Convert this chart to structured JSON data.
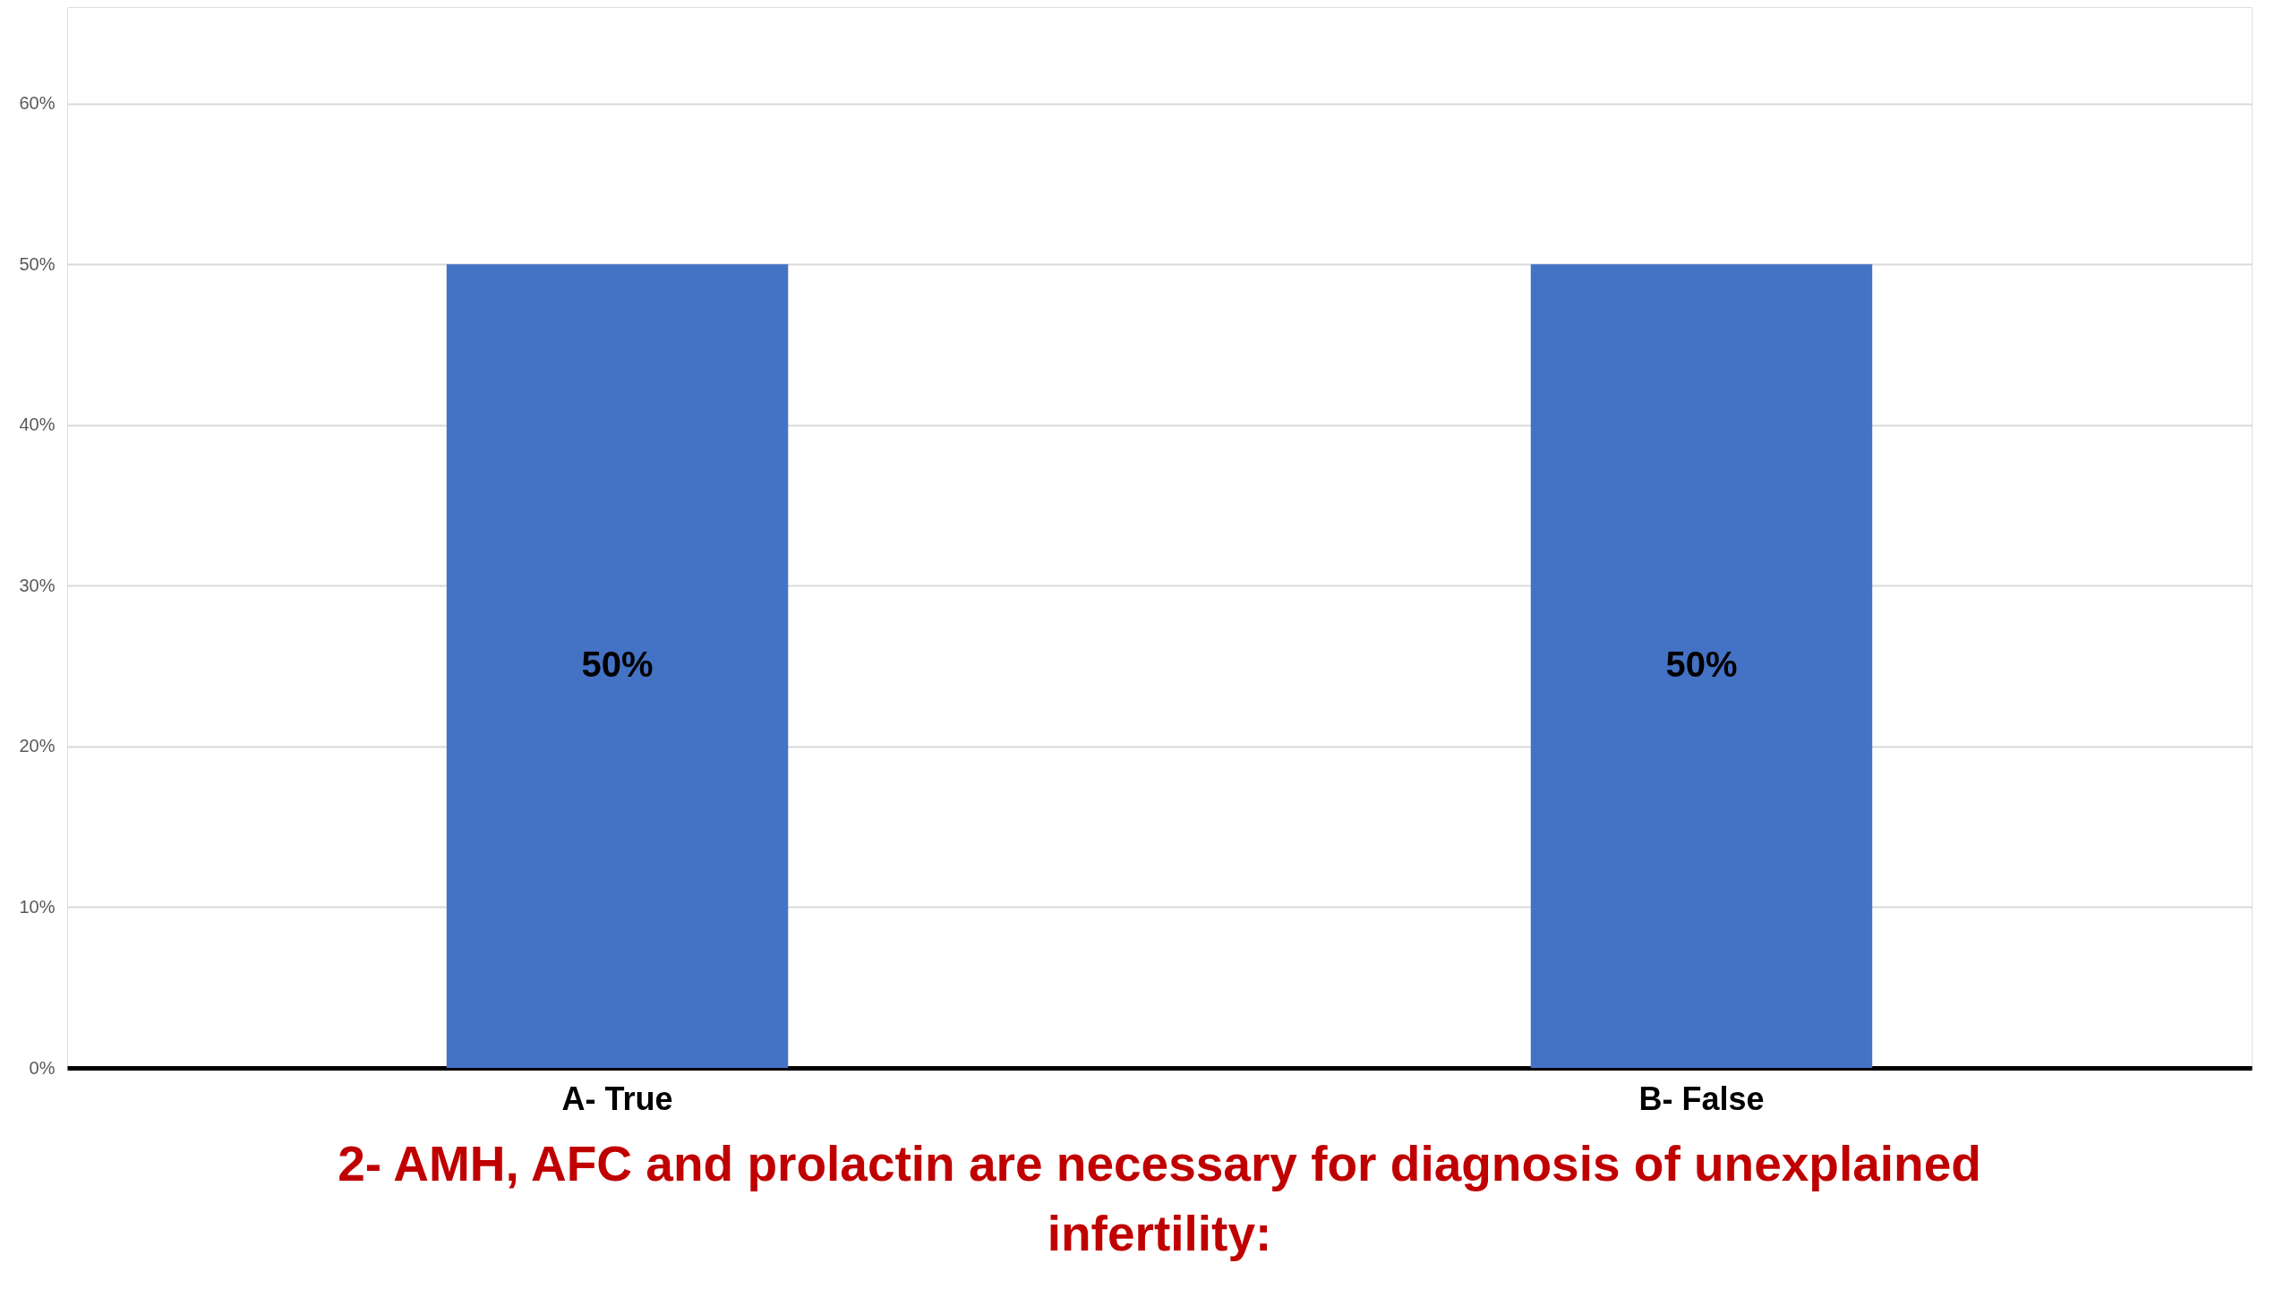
{
  "chart_data": {
    "type": "bar",
    "title": "2- AMH, AFC and prolactin are necessary for diagnosis of unexplained infertility:",
    "categories": [
      "A- True",
      "B- False"
    ],
    "values": [
      50,
      50
    ],
    "color": "#4472c4",
    "ylim": [
      0,
      66
    ],
    "yticks": [
      {
        "value": 0,
        "label": "0%"
      },
      {
        "value": 10,
        "label": "10%"
      },
      {
        "value": 20,
        "label": "20%"
      },
      {
        "value": 30,
        "label": "30%"
      },
      {
        "value": 40,
        "label": "40%"
      },
      {
        "value": 50,
        "label": "50%"
      },
      {
        "value": 60,
        "label": "60%"
      }
    ],
    "value_labels": [
      "50%",
      "50%"
    ],
    "grid": "y"
  }
}
